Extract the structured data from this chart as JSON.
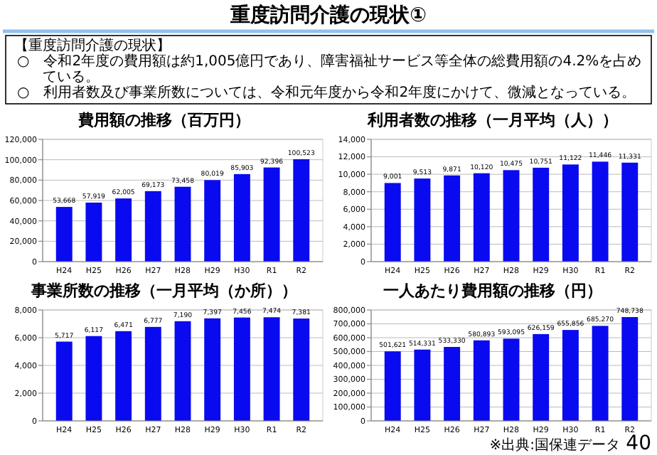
{
  "chart_data": [
    {
      "type": "bar",
      "title": "費用額の推移（百万円）",
      "categories": [
        "H24",
        "H25",
        "H26",
        "H27",
        "H28",
        "H29",
        "H30",
        "R1",
        "R2"
      ],
      "values": [
        53668,
        57919,
        62005,
        69173,
        73458,
        80019,
        85903,
        92396,
        100523
      ],
      "value_labels": [
        "53,668",
        "57,919",
        "62,005",
        "69,173",
        "73,458",
        "80,019",
        "85,903",
        "92,396",
        "100,523"
      ],
      "color": "#0a0af0",
      "ylim": [
        0,
        120000
      ],
      "yticks": [
        {
          "value": 0,
          "label": "0"
        },
        {
          "value": 20000,
          "label": "20,000"
        },
        {
          "value": 40000,
          "label": "40,000"
        },
        {
          "value": 60000,
          "label": "60,000"
        },
        {
          "value": 80000,
          "label": "80,000"
        },
        {
          "value": 100000,
          "label": "100,000"
        },
        {
          "value": 120000,
          "label": "120,000"
        }
      ],
      "grid": "y",
      "annotations": [
        "重度訪問介護の現状①",
        "【重度訪問介護の現状】",
        "○　令和2年度の費用額は約1,005億円であり、障害福祉サービス等全体の総費用額の4.2%を占めている。",
        "○　利用者数及び事業所数については、令和元年度から令和2年度にかけて、微減となっている。"
      ]
    },
    {
      "type": "bar",
      "title": "利用者数の推移（一月平均（人））",
      "categories": [
        "H24",
        "H25",
        "H26",
        "H27",
        "H28",
        "H29",
        "H30",
        "R1",
        "R2"
      ],
      "values": [
        9001,
        9513,
        9871,
        10120,
        10475,
        10751,
        11122,
        11446,
        11331
      ],
      "value_labels": [
        "9,001",
        "9,513",
        "9,871",
        "10,120",
        "10,475",
        "10,751",
        "11,122",
        "11,446",
        "11,331"
      ],
      "color": "#0a0af0",
      "ylim": [
        0,
        14000
      ],
      "yticks": [
        {
          "value": 0,
          "label": "0"
        },
        {
          "value": 2000,
          "label": "2,000"
        },
        {
          "value": 4000,
          "label": "4,000"
        },
        {
          "value": 6000,
          "label": "6,000"
        },
        {
          "value": 8000,
          "label": "8,000"
        },
        {
          "value": 10000,
          "label": "10,000"
        },
        {
          "value": 12000,
          "label": "12,000"
        },
        {
          "value": 14000,
          "label": "14,000"
        }
      ],
      "grid": "y"
    },
    {
      "type": "bar",
      "title": "事業所数の推移（一月平均（か所））",
      "categories": [
        "H24",
        "H25",
        "H26",
        "H27",
        "H28",
        "H29",
        "H30",
        "R1",
        "R2"
      ],
      "values": [
        5717,
        6117,
        6471,
        6777,
        7190,
        7397,
        7456,
        7474,
        7381
      ],
      "value_labels": [
        "5,717",
        "6,117",
        "6,471",
        "6,777",
        "7,190",
        "7,397",
        "7,456",
        "7,474",
        "7,381"
      ],
      "color": "#0a0af0",
      "ylim": [
        0,
        8000
      ],
      "yticks": [
        {
          "value": 0,
          "label": "0"
        },
        {
          "value": 2000,
          "label": "2,000"
        },
        {
          "value": 4000,
          "label": "4,000"
        },
        {
          "value": 6000,
          "label": "6,000"
        },
        {
          "value": 8000,
          "label": "8,000"
        }
      ],
      "grid": "y"
    },
    {
      "type": "bar",
      "title": "一人あたり費用額の推移（円）",
      "categories": [
        "H24",
        "H25",
        "H26",
        "H27",
        "H28",
        "H29",
        "H30",
        "R1",
        "R2"
      ],
      "values": [
        501621,
        514331,
        533330,
        580893,
        593095,
        626159,
        655856,
        685270,
        748738
      ],
      "value_labels": [
        "501,621",
        "514,331",
        "533,330",
        "580,893",
        "593,095",
        "626,159",
        "655,856",
        "685,270",
        "748,738"
      ],
      "color": "#0a0af0",
      "ylim": [
        0,
        800000
      ],
      "yticks": [
        {
          "value": 0,
          "label": "0"
        },
        {
          "value": 100000,
          "label": "100,000"
        },
        {
          "value": 200000,
          "label": "200,000"
        },
        {
          "value": 300000,
          "label": "300,000"
        },
        {
          "value": 400000,
          "label": "400,000"
        },
        {
          "value": 500000,
          "label": "500,000"
        },
        {
          "value": 600000,
          "label": "600,000"
        },
        {
          "value": 700000,
          "label": "700,000"
        },
        {
          "value": 800000,
          "label": "800,000"
        }
      ],
      "grid": "y",
      "annotations": [
        "※出典:国保連データ",
        "40"
      ]
    }
  ]
}
